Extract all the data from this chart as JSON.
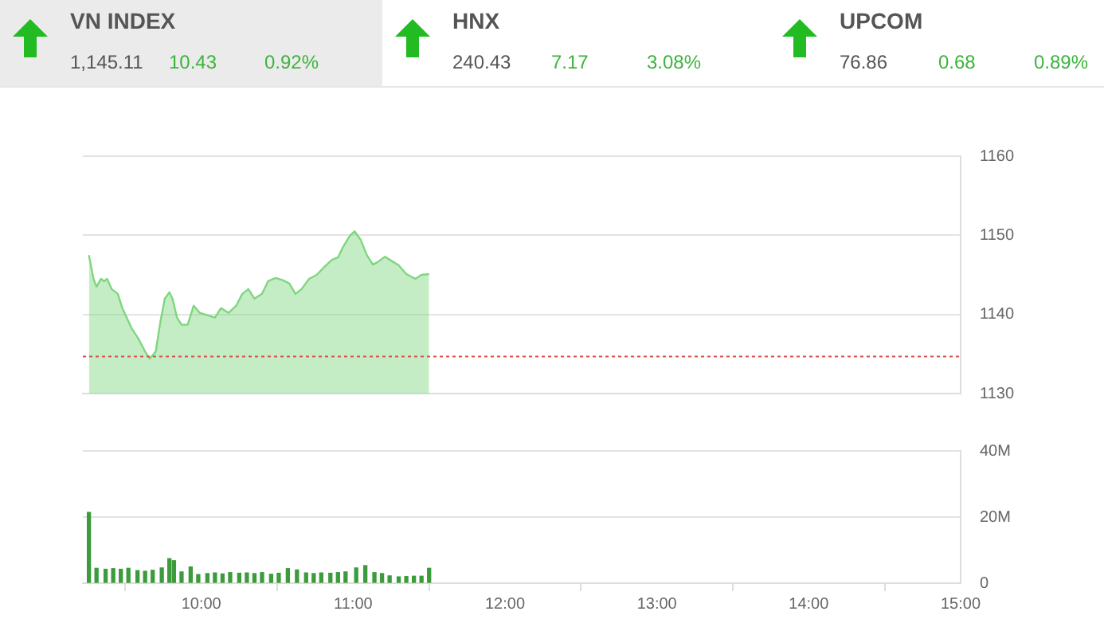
{
  "chart_data": [
    {
      "type": "other",
      "annotations": [
        "VN INDEX",
        "1,145.11",
        "10.43",
        "0.92%",
        "HNX",
        "240.43",
        "7.17",
        "3.08%",
        "UPCOM",
        "76.86",
        "0.68",
        "0.89%"
      ]
    },
    {
      "type": "area",
      "marker": "none",
      "grid": "y",
      "tick_labels": "y",
      "color": "#7fd67f",
      "x": [
        9.26,
        9.29,
        9.31,
        9.34,
        9.36,
        9.38,
        9.41,
        9.45,
        9.48,
        9.54,
        9.59,
        9.63,
        9.66,
        9.7,
        9.73,
        9.76,
        9.79,
        9.81,
        9.84,
        9.87,
        9.91,
        9.95,
        9.99,
        10.04,
        10.09,
        10.13,
        10.18,
        10.23,
        10.27,
        10.31,
        10.35,
        10.4,
        10.44,
        10.49,
        10.54,
        10.58,
        10.62,
        10.66,
        10.71,
        10.76,
        10.81,
        10.86,
        10.9,
        10.93,
        10.98,
        11.01,
        11.05,
        11.09,
        11.13,
        11.16,
        11.21,
        11.25,
        11.3,
        11.35,
        11.41,
        11.45,
        11.5
      ],
      "values": [
        1147.5,
        1144.5,
        1143.5,
        1144.5,
        1144.2,
        1144.5,
        1143.2,
        1142.6,
        1140.8,
        1138.3,
        1136.8,
        1135.3,
        1134.4,
        1135.3,
        1139,
        1142,
        1142.8,
        1142,
        1139.6,
        1138.7,
        1138.7,
        1141.1,
        1140.2,
        1139.9,
        1139.6,
        1140.8,
        1140.2,
        1141.1,
        1142.6,
        1143.2,
        1142,
        1142.6,
        1144.2,
        1144.6,
        1144.3,
        1143.9,
        1142.6,
        1143.2,
        1144.5,
        1145,
        1146,
        1146.9,
        1147.2,
        1148.4,
        1150,
        1150.5,
        1149.4,
        1147.5,
        1146.3,
        1146.6,
        1147.3,
        1146.8,
        1146.2,
        1145.1,
        1144.5,
        1145,
        1145.1
      ],
      "xlim": [
        9.22,
        15
      ],
      "ylim": [
        1130,
        1160
      ],
      "yticks": [
        1130,
        1140,
        1150,
        1160
      ],
      "ref_lines": [
        {
          "axis": "y",
          "value": 1134.68,
          "color": "#d9534f",
          "line_style": "dotted"
        }
      ]
    },
    {
      "type": "bar",
      "grid": "y",
      "color": "#3c9c3c",
      "x": [
        9.26,
        9.31,
        9.37,
        9.42,
        9.47,
        9.52,
        9.58,
        9.63,
        9.68,
        9.74,
        9.79,
        9.82,
        9.87,
        9.93,
        9.98,
        10.04,
        10.09,
        10.14,
        10.19,
        10.25,
        10.3,
        10.35,
        10.4,
        10.46,
        10.51,
        10.57,
        10.63,
        10.69,
        10.74,
        10.79,
        10.85,
        10.9,
        10.95,
        11.02,
        11.08,
        11.14,
        11.19,
        11.24,
        11.3,
        11.35,
        11.4,
        11.45,
        11.5
      ],
      "values": [
        21.4,
        4.5,
        4.2,
        4.4,
        4.2,
        4.5,
        3.8,
        3.6,
        3.9,
        4.6,
        7.4,
        6.8,
        3.4,
        4.9,
        2.6,
        2.9,
        3.1,
        2.8,
        3.2,
        3.0,
        3.1,
        2.9,
        3.2,
        2.7,
        3.0,
        4.4,
        4.0,
        3.1,
        2.9,
        3.1,
        3.0,
        3.2,
        3.4,
        4.6,
        5.3,
        3.2,
        2.9,
        2.2,
        1.9,
        2.0,
        2.1,
        2.1,
        4.5
      ],
      "xlim": [
        9.22,
        15
      ],
      "xticks": [
        {
          "value": 10,
          "label": "10:00"
        },
        {
          "value": 11,
          "label": "11:00"
        },
        {
          "value": 12,
          "label": "12:00"
        },
        {
          "value": 13,
          "label": "13:00"
        },
        {
          "value": 14,
          "label": "14:00"
        },
        {
          "value": 15,
          "label": "15:00"
        }
      ],
      "ylim": [
        0,
        40
      ],
      "yticks": [
        0,
        {
          "value": 20,
          "label": "20M"
        },
        {
          "value": 40,
          "label": "40M"
        }
      ]
    }
  ]
}
